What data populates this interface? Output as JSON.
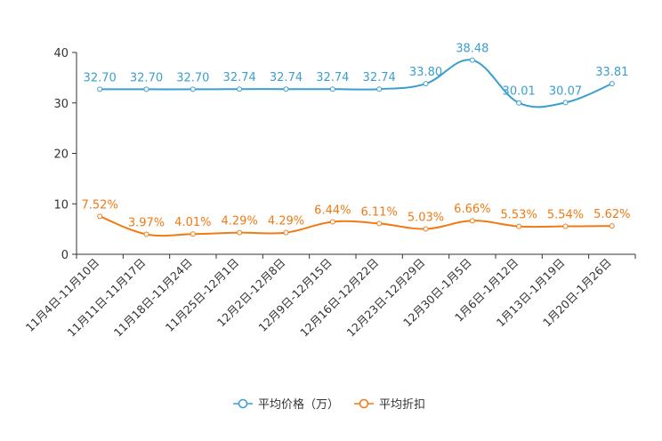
{
  "chart_data": {
    "type": "line",
    "categories": [
      "11月4日-11月10日",
      "11月11日-11月17日",
      "11月18日-11月24日",
      "11月25日-12月1日",
      "12月2日-12月8日",
      "12月9日-12月15日",
      "12月16日-12月22日",
      "12月23日-12月29日",
      "12月30日-1月5日",
      "1月6日-1月12日",
      "1月13日-1月19日",
      "1月20日-1月26日"
    ],
    "ylim": [
      0,
      40
    ],
    "yticks": [
      0,
      10,
      20,
      30,
      40
    ],
    "ytick_labels": [
      "0",
      "10",
      "20",
      "30",
      "40"
    ],
    "series": [
      {
        "name": "平均价格（万）",
        "color": "#3a9fcf",
        "values": [
          32.7,
          32.7,
          32.7,
          32.74,
          32.74,
          32.74,
          32.74,
          33.8,
          38.48,
          30.01,
          30.07,
          33.81
        ],
        "labels": [
          "32.70",
          "32.70",
          "32.70",
          "32.74",
          "32.74",
          "32.74",
          "32.74",
          "33.80",
          "38.48",
          "30.01",
          "30.07",
          "33.81"
        ]
      },
      {
        "name": "平均折扣",
        "color": "#f07a14",
        "values": [
          7.52,
          3.97,
          4.01,
          4.29,
          4.29,
          6.44,
          6.11,
          5.03,
          6.66,
          5.53,
          5.54,
          5.62
        ],
        "labels": [
          "7.52%",
          "3.97%",
          "4.01%",
          "4.29%",
          "4.29%",
          "6.44%",
          "6.11%",
          "5.03%",
          "6.66%",
          "5.53%",
          "5.54%",
          "5.62%"
        ]
      }
    ],
    "legend_position": "bottom-center"
  }
}
